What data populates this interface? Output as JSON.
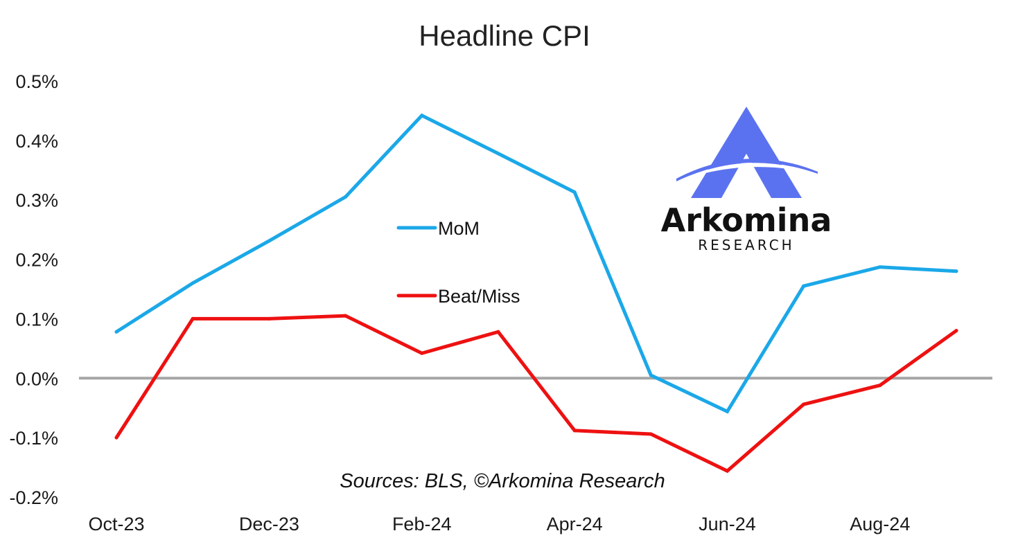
{
  "colors": {
    "mom": "#1BA8E8",
    "beat_miss": "#EE1111",
    "zero_line": "#A6A6A6",
    "logo_blue": "#5B72F0"
  },
  "source_note": "Sources: BLS, ©Arkomina Research",
  "logo": {
    "icon": "arkomina-a-logo",
    "name": "Arkomina",
    "subtitle": "RESEARCH"
  },
  "chart_data": {
    "type": "line",
    "title": "Headline CPI",
    "xlabel": "",
    "ylabel": "",
    "x": [
      "Oct-23",
      "Nov-23",
      "Dec-23",
      "Jan-24",
      "Feb-24",
      "Mar-24",
      "Apr-24",
      "May-24",
      "Jun-24",
      "Jul-24",
      "Aug-24",
      "Sep-24"
    ],
    "x_tick_labels": [
      "Oct-23",
      "Dec-23",
      "Feb-24",
      "Apr-24",
      "Jun-24",
      "Aug-24"
    ],
    "ylim": [
      -0.2,
      0.5
    ],
    "y_ticks": [
      0.5,
      0.4,
      0.3,
      0.2,
      0.1,
      0.0,
      -0.1,
      -0.2
    ],
    "y_tick_labels": [
      "0.5%",
      "0.4%",
      "0.3%",
      "0.2%",
      "0.1%",
      "0.0%",
      "-0.1%",
      "-0.2%"
    ],
    "grid": false,
    "legend_position": "center",
    "series": [
      {
        "name": "MoM",
        "values": [
          0.078,
          0.16,
          0.231,
          0.305,
          0.442,
          0.378,
          0.313,
          0.005,
          -0.056,
          0.155,
          0.187,
          0.18
        ]
      },
      {
        "name": "Beat/Miss",
        "values": [
          -0.1,
          0.1,
          0.1,
          0.105,
          0.042,
          0.078,
          -0.088,
          -0.094,
          -0.156,
          -0.044,
          -0.012,
          0.08
        ]
      }
    ]
  }
}
